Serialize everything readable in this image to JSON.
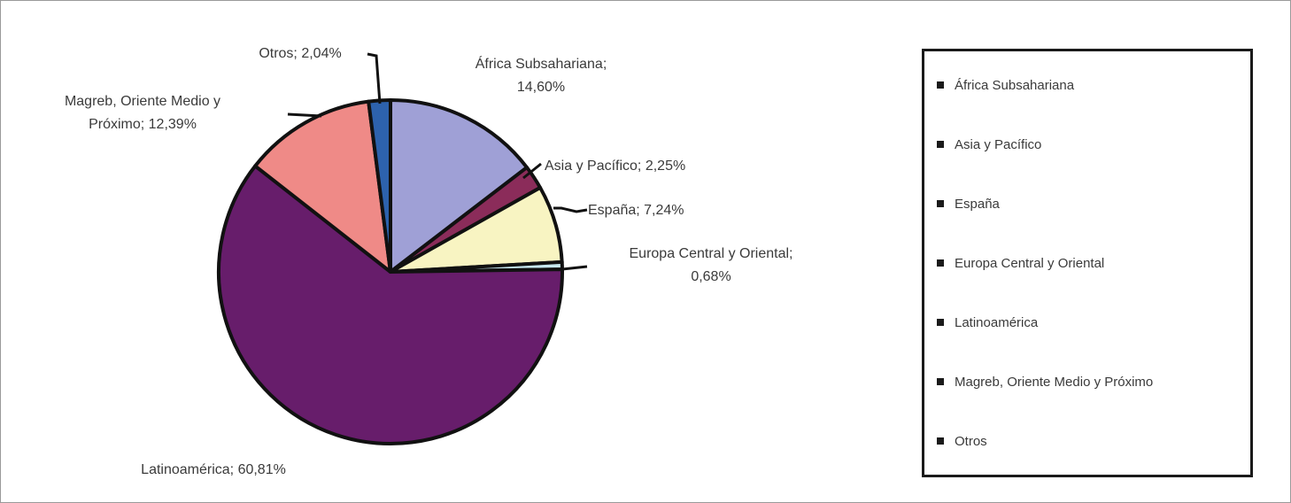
{
  "chart_data": {
    "type": "pie",
    "categories": [
      "África Subsahariana",
      "Asia y Pacífico",
      "España",
      "Europa Central y Oriental",
      "Latinoamérica",
      "Magreb, Oriente Medio y Próximo",
      "Otros"
    ],
    "values": [
      14.6,
      2.25,
      7.24,
      0.68,
      60.81,
      12.39,
      2.04
    ],
    "slices": [
      {
        "name": "África Subsahariana",
        "value": 14.6,
        "label_lines": [
          "África Subsahariana;",
          "14,60%"
        ],
        "color": "#9fa0d6"
      },
      {
        "name": "Asia y Pacífico",
        "value": 2.25,
        "label_lines": [
          "Asia y Pacífico; 2,25%"
        ],
        "color": "#8b2c5a"
      },
      {
        "name": "España",
        "value": 7.24,
        "label_lines": [
          "España; 7,24%"
        ],
        "color": "#f8f4c2"
      },
      {
        "name": "Europa Central y Oriental",
        "value": 0.68,
        "label_lines": [
          "Europa Central y Oriental;",
          "0,68%"
        ],
        "color": "#c7e8ef"
      },
      {
        "name": "Latinoamérica",
        "value": 60.81,
        "label_lines": [
          "Latinoamérica; 60,81%"
        ],
        "color": "#671d6b"
      },
      {
        "name": "Magreb, Oriente Medio y Próximo",
        "value": 12.39,
        "label_lines": [
          "Magreb, Oriente Medio y",
          "Próximo; 12,39%"
        ],
        "color": "#ef8a87"
      },
      {
        "name": "Otros",
        "value": 2.04,
        "label_lines": [
          "Otros; 2,04%"
        ],
        "color": "#2d62ad"
      }
    ],
    "legend": {
      "placement": "right",
      "entries": [
        "África Subsahariana",
        "Asia y Pacífico",
        "España",
        "Europa Central y Oriental",
        "Latinoamérica",
        "Magreb, Oriente Medio y Próximo",
        "Otros"
      ]
    }
  }
}
